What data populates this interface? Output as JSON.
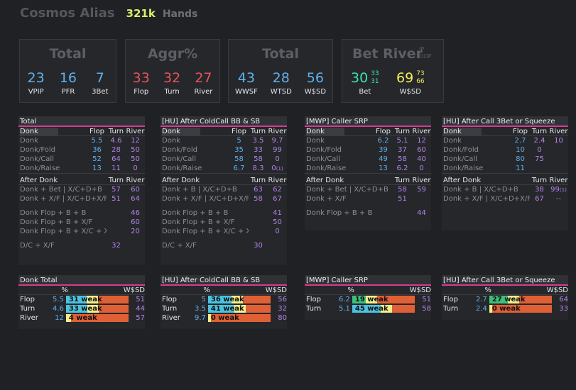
{
  "header": {
    "player": "Cosmos Alias",
    "hands": "321k",
    "hands_label": "Hands"
  },
  "cards": [
    {
      "title": "Total",
      "stats": [
        {
          "value": "23",
          "label": "VPIP",
          "color": "#5eb0ec"
        },
        {
          "value": "16",
          "label": "PFR",
          "color": "#5eb0ec"
        },
        {
          "value": "7",
          "label": "3Bet",
          "color": "#5eb0ec"
        }
      ]
    },
    {
      "title": "Aggr%",
      "stats": [
        {
          "value": "33",
          "label": "Flop",
          "color": "#e4545a"
        },
        {
          "value": "32",
          "label": "Turn",
          "color": "#e4545a"
        },
        {
          "value": "27",
          "label": "River",
          "color": "#e4545a"
        }
      ]
    },
    {
      "title": "Total",
      "stats": [
        {
          "value": "43",
          "label": "WWSF",
          "color": "#5eb0ec"
        },
        {
          "value": "28",
          "label": "WTSD",
          "color": "#5eb0ec"
        },
        {
          "value": "56",
          "label": "W$SD",
          "color": "#5eb0ec"
        }
      ]
    }
  ],
  "bet_river": {
    "title": "Bet River",
    "ip": "IP",
    "oop": "OOP",
    "bet": {
      "value": "30",
      "ip": "33",
      "oop": "31",
      "label": "Bet",
      "color": "#3fe0b4"
    },
    "wsd": {
      "value": "69",
      "ip": "73",
      "oop": "66",
      "label": "W$SD",
      "color": "#f0ee5a"
    }
  },
  "panels": [
    {
      "title": "Total",
      "donk": {
        "name": "Donk",
        "cols": [
          "Flop",
          "Turn",
          "River"
        ],
        "rows": [
          {
            "label": "Donk",
            "vals": [
              "5.5",
              "4.6",
              "12"
            ]
          },
          {
            "label": "Donk/Fold",
            "vals": [
              "36",
              "28",
              "50"
            ]
          },
          {
            "label": "Donk/Call",
            "vals": [
              "52",
              "64",
              "50"
            ]
          },
          {
            "label": "Donk/Raise",
            "vals": [
              "13",
              "11",
              "0"
            ]
          }
        ]
      },
      "after": {
        "name": "After Donk",
        "cols": [
          "Turn",
          "River"
        ],
        "rows": [
          {
            "label": "Donk + Bet | X/C+D+B",
            "vals": [
              "57",
              "60"
            ]
          },
          {
            "label": "Donk + X/F | X/C+D+X/F",
            "vals": [
              "51",
              "64"
            ]
          }
        ],
        "rows2": [
          {
            "label": "Donk Flop + B + B",
            "vals": [
              "",
              "46"
            ]
          },
          {
            "label": "Donk Flop + B + X/F",
            "vals": [
              "",
              "60"
            ]
          },
          {
            "label": "Donk Flop + B + X/C + X/F",
            "vals": [
              "",
              "20"
            ]
          }
        ],
        "rows3": [
          {
            "label": "D/C + X/F",
            "vals": [
              "32",
              ""
            ]
          }
        ]
      }
    },
    {
      "title": "[HU] After ColdCall BB & SB",
      "donk": {
        "name": "Donk",
        "cols": [
          "Flop",
          "Turn",
          "River"
        ],
        "rows": [
          {
            "label": "Donk",
            "vals": [
              "5",
              "3.5",
              "9.7"
            ]
          },
          {
            "label": "Donk/Fold",
            "vals": [
              "35",
              "33",
              "99"
            ]
          },
          {
            "label": "Donk/Call",
            "vals": [
              "58",
              "58",
              "0"
            ]
          },
          {
            "label": "Donk/Raise",
            "vals": [
              "6.7",
              "8.3",
              "0(1)"
            ]
          }
        ]
      },
      "after": {
        "name": "After Donk",
        "cols": [
          "Turn",
          "River"
        ],
        "rows": [
          {
            "label": "Donk + B | X/C+D+B",
            "vals": [
              "63",
              "62"
            ]
          },
          {
            "label": "Donk + X/F | X/C+D+X/F",
            "vals": [
              "58",
              "67"
            ]
          }
        ],
        "rows2": [
          {
            "label": "Donk Flop + B + B",
            "vals": [
              "",
              "41"
            ]
          },
          {
            "label": "Donk Flop + B + X/F",
            "vals": [
              "",
              "50"
            ]
          },
          {
            "label": "Donk Flop + B + X/C + X/F",
            "vals": [
              "",
              "0"
            ]
          }
        ],
        "rows3": [
          {
            "label": "D/C + X/F",
            "vals": [
              "30",
              ""
            ]
          }
        ]
      }
    },
    {
      "title": "[MWP] Caller SRP",
      "donk": {
        "name": "Donk",
        "cols": [
          "Flop",
          "Turn",
          "River"
        ],
        "rows": [
          {
            "label": "Donk",
            "vals": [
              "6.2",
              "5.1",
              "12"
            ]
          },
          {
            "label": "Donk/Fold",
            "vals": [
              "39",
              "37",
              "60"
            ]
          },
          {
            "label": "Donk/Call",
            "vals": [
              "49",
              "58",
              "40"
            ]
          },
          {
            "label": "Donk/Raise",
            "vals": [
              "13",
              "6.2",
              "0"
            ]
          }
        ]
      },
      "after": {
        "name": "After Donk",
        "cols": [
          "Turn",
          "River"
        ],
        "rows": [
          {
            "label": "Donk + Bet | X/C+D+B",
            "vals": [
              "58",
              "59"
            ]
          },
          {
            "label": "Donk + X/F",
            "vals": [
              "51",
              ""
            ]
          }
        ],
        "rows2": [
          {
            "label": "Donk Flop + B + B",
            "vals": [
              "",
              "44"
            ]
          }
        ],
        "rows3": []
      }
    },
    {
      "title": "[HU] After Call 3Bet or Squeeze",
      "donk": {
        "name": "Donk",
        "cols": [
          "Flop",
          "Turn",
          "River"
        ],
        "rows": [
          {
            "label": "Donk",
            "vals": [
              "2.7",
              "2.4",
              "10"
            ]
          },
          {
            "label": "Donk/Fold",
            "vals": [
              "10",
              "0",
              ""
            ]
          },
          {
            "label": "Donk/Call",
            "vals": [
              "80",
              "75",
              ""
            ]
          },
          {
            "label": "Donk/Raise",
            "vals": [
              "11",
              "",
              ""
            ]
          }
        ]
      },
      "after": {
        "name": "After Donk",
        "cols": [
          "Turn",
          "River"
        ],
        "rows": [
          {
            "label": "Donk + B | X/C+D+B",
            "vals": [
              "38",
              "99(1)"
            ]
          },
          {
            "label": "Donk + X/F | X/C+D+X/F",
            "vals": [
              "67",
              "--"
            ]
          }
        ],
        "rows2": [],
        "rows3": []
      }
    }
  ],
  "bottom_panels": [
    {
      "title": "Donk Total",
      "pct_label": "%",
      "wsd_label": "W$SD",
      "rows": [
        {
          "label": "Flop",
          "pct": "5.5",
          "weak": 31,
          "weak_text": "31 weak",
          "wsd": "51"
        },
        {
          "label": "Turn",
          "pct": "4.6",
          "weak": 33,
          "weak_text": "33 weak",
          "wsd": "44"
        },
        {
          "label": "River",
          "pct": "12",
          "weak": 4,
          "weak_text": "4 weak",
          "wsd": "57"
        }
      ]
    },
    {
      "title": "[HU] After ColdCall BB & SB",
      "pct_label": "%",
      "wsd_label": "W$SD",
      "rows": [
        {
          "label": "Flop",
          "pct": "5",
          "weak": 36,
          "weak_text": "36 weak",
          "wsd": "56"
        },
        {
          "label": "Turn",
          "pct": "3.5",
          "weak": 41,
          "weak_text": "41 weak",
          "wsd": "32"
        },
        {
          "label": "River",
          "pct": "9.7",
          "weak": 0,
          "weak_text": "0 weak",
          "wsd": "80"
        }
      ]
    },
    {
      "title": "[MWP] Caller SRP",
      "pct_label": "%",
      "wsd_label": "W$SD",
      "rows": [
        {
          "label": "Flop",
          "pct": "6.2",
          "weak": 19,
          "weak_text": "19 weak",
          "wsd": "51"
        },
        {
          "label": "Turn",
          "pct": "5.1",
          "weak": 45,
          "weak_text": "45 weak",
          "wsd": "58"
        }
      ]
    },
    {
      "title": "[HU] After Call 3Bet or Squeeze",
      "pct_label": "%",
      "wsd_label": "W$SD",
      "rows": [
        {
          "label": "Flop",
          "pct": "2.7",
          "weak": 27,
          "weak_text": "27 weak",
          "wsd": "64"
        },
        {
          "label": "Turn",
          "pct": "2.4",
          "weak": 0,
          "weak_text": "0 weak",
          "wsd": "33"
        }
      ]
    }
  ],
  "colors": {
    "blue": "#5eb0ec",
    "purple": "#b184e6",
    "accent": "#d43c8d",
    "bar_orange": "#e06035",
    "bar_yellow": "#f3ef8a",
    "bar_green": "#3ec07a",
    "bar_cyan": "#4bc3e0"
  }
}
